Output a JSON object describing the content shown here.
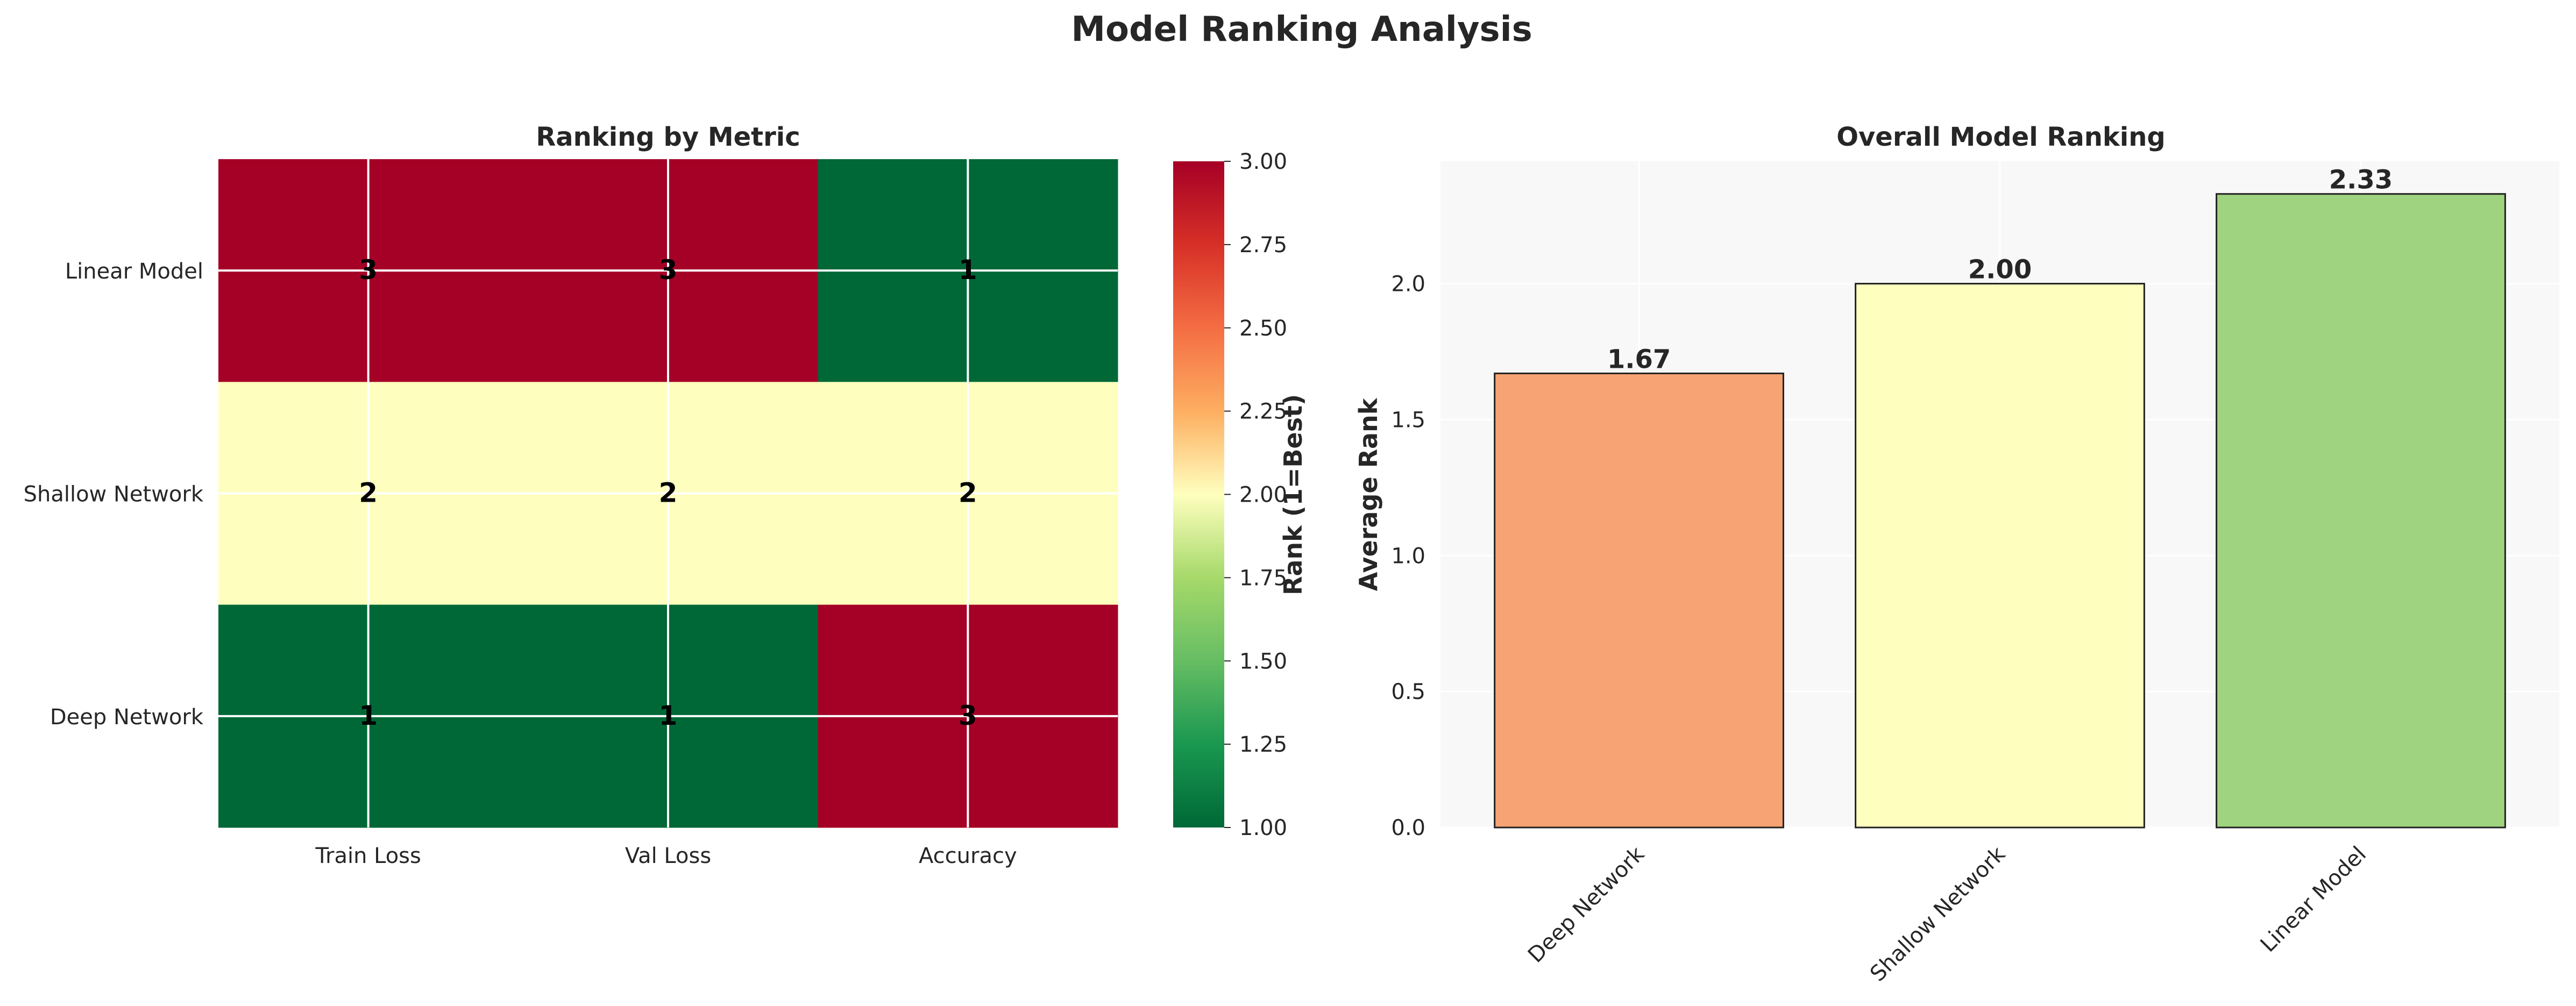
{
  "figure": {
    "title": "Model Ranking Analysis"
  },
  "chart_data": [
    {
      "type": "heatmap",
      "title": "Ranking by Metric",
      "rows": [
        "Linear Model",
        "Shallow Network",
        "Deep Network"
      ],
      "columns": [
        "Train Loss",
        "Val Loss",
        "Accuracy"
      ],
      "values": [
        [
          3,
          3,
          1
        ],
        [
          2,
          2,
          2
        ],
        [
          1,
          1,
          3
        ]
      ],
      "colormap": "RdYlGn_r",
      "colorbar": {
        "label": "Rank (1=Best)",
        "range": [
          1.0,
          3.0
        ],
        "ticks": [
          "1.00",
          "1.25",
          "1.50",
          "1.75",
          "2.00",
          "2.25",
          "2.50",
          "2.75",
          "3.00"
        ]
      },
      "grid": true,
      "colors": {
        "rank_1": "#006837",
        "rank_2": "#feffbe",
        "rank_3": "#a50026"
      }
    },
    {
      "type": "bar",
      "title": "Overall Model Ranking",
      "categories": [
        "Deep Network",
        "Shallow Network",
        "Linear Model"
      ],
      "values": [
        1.67,
        2.0,
        2.33
      ],
      "value_labels": [
        "1.67",
        "2.00",
        "2.33"
      ],
      "xlabel": "",
      "ylabel": "Average Rank",
      "ylim": [
        0,
        2.45
      ],
      "yticks": [
        "0.0",
        "0.5",
        "1.0",
        "1.5",
        "2.0"
      ],
      "bar_colors": [
        "#f7a373",
        "#feffbe",
        "#9fd380"
      ],
      "grid": true,
      "background": "#f8f8f8"
    }
  ]
}
